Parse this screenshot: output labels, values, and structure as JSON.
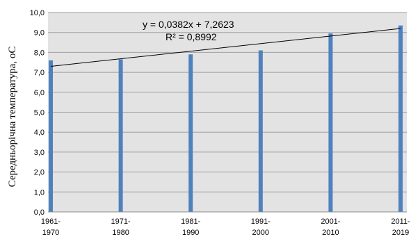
{
  "chart_data": {
    "type": "bar",
    "categories": [
      "1961-\n1970",
      "1971-\n1980",
      "1981-\n1990",
      "1991-\n2000",
      "2001-\n2010",
      "2011-\n2019"
    ],
    "series": [
      {
        "values": [
          7.6,
          7.65,
          7.9,
          8.1,
          8.95,
          9.35
        ]
      }
    ],
    "ylabel": "Середньорічна температура, оС",
    "xlabel": "",
    "ylim": [
      0,
      10
    ],
    "yticks": [
      "0,0",
      "1,0",
      "2,0",
      "3,0",
      "4,0",
      "5,0",
      "6,0",
      "7,0",
      "8,0",
      "9,0",
      "10,0"
    ],
    "trendline": {
      "type": "linear",
      "slope": 0.0382,
      "intercept": 7.2623,
      "start_value": 7.3,
      "end_value": 9.2,
      "equation_label": "y = 0,0382x + 7,2623",
      "r2_label": "R² = 0,8992"
    },
    "grid": true,
    "plot_background": "#e3e3e3",
    "bar_color": "#4f81bd",
    "grid_color": "#9f9f9f"
  }
}
